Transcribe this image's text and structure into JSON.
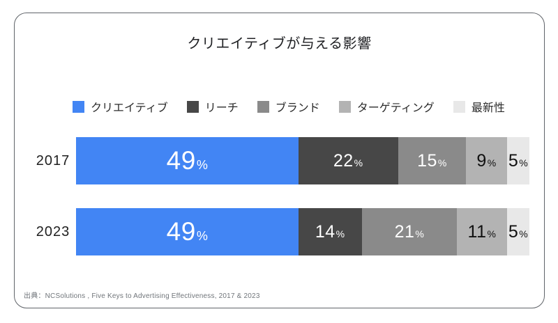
{
  "title": "クリエイティブが与える影響",
  "source": "出典：NCSolutions , Five Keys to Advertising Effectiveness, 2017 & 2023",
  "colors": {
    "creative_blue": "#4285F4",
    "reach_dark_gray": "#474747",
    "brand_mid_gray": "#8A8A8A",
    "targeting_light_gray": "#B3B3B3",
    "recency_lightest_gray": "#E8E8E8",
    "card_border": "#5f6368"
  },
  "chart_data": {
    "type": "bar",
    "orientation": "horizontal-stacked",
    "title": "クリエイティブが与える影響",
    "categories": [
      "2017",
      "2023"
    ],
    "series": [
      {
        "name": "クリエイティブ",
        "color": "#4285F4",
        "label_color": "#ffffff",
        "values": [
          49,
          49
        ]
      },
      {
        "name": "リーチ",
        "color": "#474747",
        "label_color": "#ffffff",
        "values": [
          22,
          14
        ]
      },
      {
        "name": "ブランド",
        "color": "#8A8A8A",
        "label_color": "#ffffff",
        "values": [
          15,
          21
        ]
      },
      {
        "name": "ターゲティング",
        "color": "#B3B3B3",
        "label_color": "#111111",
        "values": [
          9,
          11
        ]
      },
      {
        "name": "最新性",
        "color": "#E8E8E8",
        "label_color": "#111111",
        "values": [
          5,
          5
        ]
      }
    ],
    "value_suffix": "%",
    "xlim": [
      0,
      100
    ],
    "grid": false,
    "legend_position": "top"
  }
}
